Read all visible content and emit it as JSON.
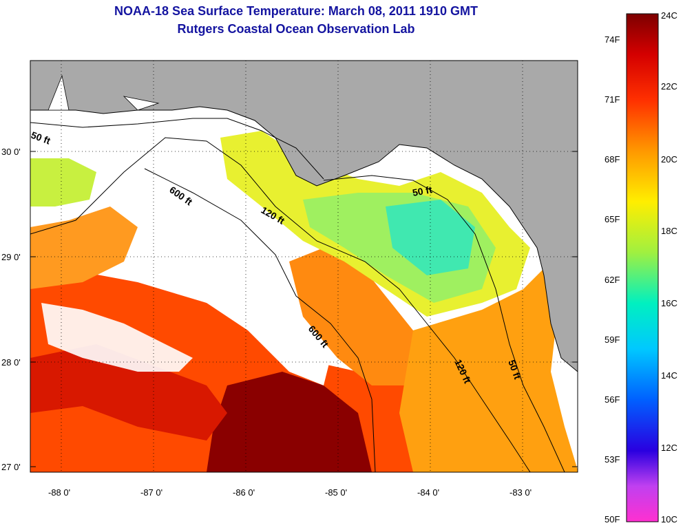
{
  "header": {
    "title": "NOAA-18 Sea Surface Temperature:  March 08, 2011 1910 GMT",
    "subtitle": "Rutgers Coastal Ocean Observation Lab"
  },
  "map": {
    "lat_labels": [
      "30 0'",
      "29 0'",
      "28 0'",
      "27 0'"
    ],
    "lon_labels": [
      "-88 0'",
      "-87 0'",
      "-86 0'",
      "-85 0'",
      "-84 0'",
      "-83 0'"
    ],
    "contour_labels": [
      "50 ft",
      "600 ft",
      "120 ft",
      "50 ft",
      "600 ft",
      "120 ft",
      "50 ft"
    ],
    "colors": {
      "land": "#a9a9a9",
      "cloud": "#ffffff"
    }
  },
  "colorbar": {
    "fahrenheit_labels": [
      "74F",
      "71F",
      "68F",
      "65F",
      "62F",
      "59F",
      "56F",
      "53F",
      "50F"
    ],
    "celsius_labels": [
      "24C",
      "22C",
      "20C",
      "18C",
      "16C",
      "14C",
      "12C",
      "10C"
    ]
  }
}
